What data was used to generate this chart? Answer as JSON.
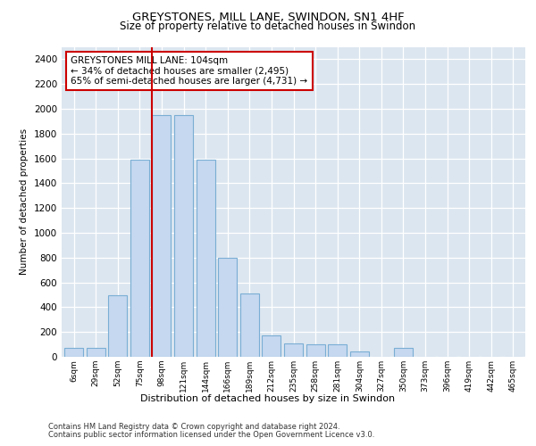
{
  "title": "GREYSTONES, MILL LANE, SWINDON, SN1 4HF",
  "subtitle": "Size of property relative to detached houses in Swindon",
  "xlabel": "Distribution of detached houses by size in Swindon",
  "ylabel": "Number of detached properties",
  "categories": [
    "6sqm",
    "29sqm",
    "52sqm",
    "75sqm",
    "98sqm",
    "121sqm",
    "144sqm",
    "166sqm",
    "189sqm",
    "212sqm",
    "235sqm",
    "258sqm",
    "281sqm",
    "304sqm",
    "327sqm",
    "350sqm",
    "373sqm",
    "396sqm",
    "419sqm",
    "442sqm",
    "465sqm"
  ],
  "values": [
    75,
    75,
    500,
    1590,
    1950,
    1950,
    1590,
    800,
    510,
    175,
    105,
    100,
    100,
    40,
    0,
    75,
    0,
    0,
    0,
    0,
    0
  ],
  "bar_color": "#c5d8ef",
  "bar_edge_color": "#7aaed4",
  "vline_x_index": 4,
  "vline_color": "#cc0000",
  "annotation_line1": "GREYSTONES MILL LANE: 104sqm",
  "annotation_line2": "← 34% of detached houses are smaller (2,495)",
  "annotation_line3": "65% of semi-detached houses are larger (4,731) →",
  "annotation_box_facecolor": "#ffffff",
  "annotation_box_edgecolor": "#cc0000",
  "ylim": [
    0,
    2500
  ],
  "yticks": [
    0,
    200,
    400,
    600,
    800,
    1000,
    1200,
    1400,
    1600,
    1800,
    2000,
    2200,
    2400
  ],
  "fig_bg_color": "#ffffff",
  "plot_bg_color": "#dce6f0",
  "footer1": "Contains HM Land Registry data © Crown copyright and database right 2024.",
  "footer2": "Contains public sector information licensed under the Open Government Licence v3.0.",
  "title_fontsize": 9.5,
  "subtitle_fontsize": 8.5,
  "ylabel_fontsize": 7.5,
  "xlabel_fontsize": 8.0,
  "tick_fontsize": 7.5,
  "xtick_fontsize": 6.5,
  "annotation_fontsize": 7.5,
  "footer_fontsize": 6.0
}
